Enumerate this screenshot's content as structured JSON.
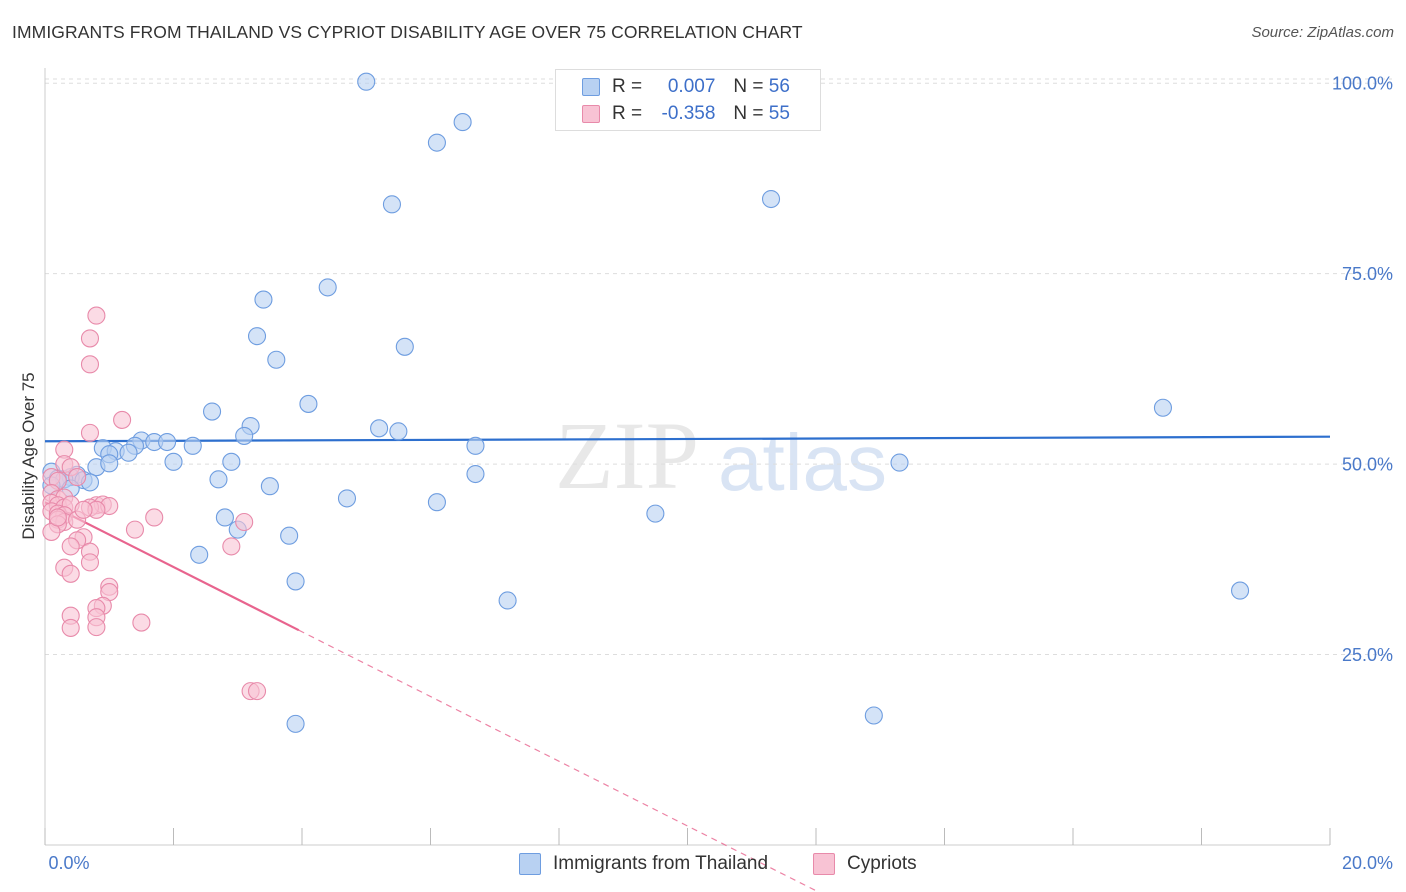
{
  "title": "IMMIGRANTS FROM THAILAND VS CYPRIOT DISABILITY AGE OVER 75 CORRELATION CHART",
  "source": "Source: ZipAtlas.com",
  "watermark": {
    "zip": "ZIP",
    "atlas": "atlas"
  },
  "legend": {
    "series": [
      {
        "r_label": "R =",
        "r_value": "0.007",
        "n_label": "N =",
        "n_value": "56",
        "fill": "#b8d1f2",
        "stroke": "#6e9de0"
      },
      {
        "r_label": "R =",
        "r_value": "-0.358",
        "n_label": "N =",
        "n_value": "55",
        "fill": "#f8c3d4",
        "stroke": "#e88aaa"
      }
    ]
  },
  "bottom_legend": [
    {
      "label": "Immigrants from Thailand",
      "fill": "#b8d1f2",
      "stroke": "#6e9de0"
    },
    {
      "label": "Cypriots",
      "fill": "#f8c3d4",
      "stroke": "#e88aaa"
    }
  ],
  "chart_data": {
    "type": "scatter",
    "title": "IMMIGRANTS FROM THAILAND VS CYPRIOT DISABILITY AGE OVER 75 CORRELATION CHART",
    "xlabel": "",
    "ylabel": "Disability Age Over 75",
    "xlim": [
      0,
      20
    ],
    "ylim": [
      0,
      102
    ],
    "x_tick_labels": [
      "0.0%",
      "20.0%"
    ],
    "y_ticks": [
      {
        "value": 25,
        "label": "25.0%"
      },
      {
        "value": 50,
        "label": "50.0%"
      },
      {
        "value": 75,
        "label": "75.0%"
      },
      {
        "value": 100,
        "label": "100.0%"
      }
    ],
    "grid": true,
    "series": [
      {
        "name": "Immigrants from Thailand",
        "color": "#6e9de0",
        "fill": "#b8d1f2",
        "trend": {
          "x": [
            0.0,
            20.0
          ],
          "y": [
            53.0,
            53.6
          ],
          "color": "#2d6fce",
          "style": "solid"
        },
        "points": [
          [
            5.0,
            100.2
          ],
          [
            6.5,
            94.9
          ],
          [
            6.1,
            92.2
          ],
          [
            5.4,
            84.1
          ],
          [
            11.3,
            84.8
          ],
          [
            4.4,
            73.2
          ],
          [
            3.4,
            71.6
          ],
          [
            3.3,
            66.8
          ],
          [
            3.6,
            63.7
          ],
          [
            5.6,
            65.4
          ],
          [
            4.1,
            57.9
          ],
          [
            2.6,
            56.9
          ],
          [
            17.4,
            57.4
          ],
          [
            5.2,
            54.7
          ],
          [
            5.5,
            54.3
          ],
          [
            3.2,
            55.0
          ],
          [
            3.1,
            53.7
          ],
          [
            1.5,
            53.1
          ],
          [
            1.7,
            52.9
          ],
          [
            1.9,
            52.9
          ],
          [
            1.4,
            52.4
          ],
          [
            2.3,
            52.4
          ],
          [
            0.9,
            52.1
          ],
          [
            1.1,
            51.7
          ],
          [
            1.3,
            51.5
          ],
          [
            1.0,
            51.3
          ],
          [
            6.7,
            52.4
          ],
          [
            0.8,
            49.6
          ],
          [
            1.0,
            50.1
          ],
          [
            2.0,
            50.3
          ],
          [
            2.9,
            50.3
          ],
          [
            13.3,
            50.2
          ],
          [
            0.1,
            49.0
          ],
          [
            0.5,
            48.6
          ],
          [
            0.4,
            48.3
          ],
          [
            0.2,
            48.1
          ],
          [
            0.3,
            48.0
          ],
          [
            0.6,
            47.9
          ],
          [
            0.7,
            47.6
          ],
          [
            6.7,
            48.7
          ],
          [
            2.7,
            48.0
          ],
          [
            3.5,
            47.1
          ],
          [
            4.7,
            45.5
          ],
          [
            6.1,
            45.0
          ],
          [
            9.5,
            43.5
          ],
          [
            2.8,
            43.0
          ],
          [
            3.0,
            41.4
          ],
          [
            3.8,
            40.6
          ],
          [
            2.4,
            38.1
          ],
          [
            3.9,
            34.6
          ],
          [
            7.2,
            32.1
          ],
          [
            18.6,
            33.4
          ],
          [
            3.9,
            15.9
          ],
          [
            12.9,
            17.0
          ],
          [
            0.1,
            47.2
          ],
          [
            0.4,
            46.8
          ]
        ]
      },
      {
        "name": "Cypriots",
        "color": "#e88aaa",
        "fill": "#f8c3d4",
        "trend": {
          "x": [
            0.0,
            3.95
          ],
          "y": [
            45.0,
            28.2
          ],
          "color": "#e8648e",
          "style": "solid",
          "extension": {
            "x": [
              3.95,
              12.0
            ],
            "y": [
              28.2,
              -6.0
            ],
            "style": "dashed"
          }
        },
        "points": [
          [
            0.8,
            69.5
          ],
          [
            0.7,
            66.5
          ],
          [
            0.7,
            63.1
          ],
          [
            1.2,
            55.8
          ],
          [
            0.7,
            54.1
          ],
          [
            0.3,
            51.9
          ],
          [
            0.3,
            50.0
          ],
          [
            0.4,
            49.6
          ],
          [
            0.1,
            48.3
          ],
          [
            0.2,
            47.8
          ],
          [
            0.5,
            48.3
          ],
          [
            0.1,
            46.2
          ],
          [
            0.2,
            45.4
          ],
          [
            0.3,
            45.6
          ],
          [
            0.1,
            44.9
          ],
          [
            0.2,
            44.6
          ],
          [
            0.3,
            44.3
          ],
          [
            0.4,
            44.7
          ],
          [
            0.8,
            44.6
          ],
          [
            0.9,
            44.7
          ],
          [
            1.0,
            44.5
          ],
          [
            0.7,
            44.3
          ],
          [
            0.8,
            44.0
          ],
          [
            0.1,
            43.8
          ],
          [
            0.2,
            43.5
          ],
          [
            0.3,
            43.3
          ],
          [
            0.2,
            42.7
          ],
          [
            0.3,
            42.4
          ],
          [
            0.5,
            42.7
          ],
          [
            0.2,
            42.1
          ],
          [
            1.7,
            43.0
          ],
          [
            3.1,
            42.4
          ],
          [
            1.4,
            41.4
          ],
          [
            0.1,
            41.1
          ],
          [
            0.6,
            40.4
          ],
          [
            0.5,
            40.0
          ],
          [
            0.4,
            39.2
          ],
          [
            2.9,
            39.2
          ],
          [
            0.7,
            38.5
          ],
          [
            0.7,
            37.1
          ],
          [
            0.3,
            36.4
          ],
          [
            0.4,
            35.6
          ],
          [
            1.0,
            33.9
          ],
          [
            1.0,
            33.2
          ],
          [
            0.9,
            31.4
          ],
          [
            0.8,
            31.1
          ],
          [
            0.4,
            30.1
          ],
          [
            0.8,
            29.9
          ],
          [
            1.5,
            29.2
          ],
          [
            0.4,
            28.5
          ],
          [
            0.8,
            28.6
          ],
          [
            3.2,
            20.2
          ],
          [
            3.3,
            20.2
          ],
          [
            0.6,
            44.0
          ],
          [
            0.2,
            43.0
          ]
        ]
      }
    ]
  }
}
